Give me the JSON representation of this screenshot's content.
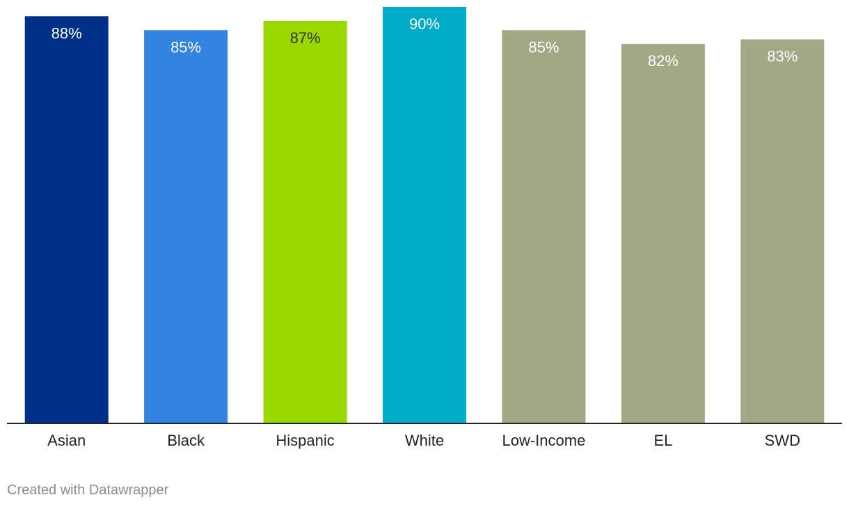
{
  "chart_data": {
    "type": "bar",
    "categories": [
      "Asian",
      "Black",
      "Hispanic",
      "White",
      "Low-Income",
      "EL",
      "SWD"
    ],
    "values": [
      88,
      85,
      87,
      90,
      85,
      82,
      83
    ],
    "value_labels": [
      "88%",
      "85%",
      "87%",
      "90%",
      "85%",
      "82%",
      "83%"
    ],
    "colors": [
      "#003087",
      "#3283e2",
      "#99d900",
      "#00adc8",
      "#a3a985",
      "#a3a985",
      "#a3a985"
    ],
    "label_color_dark": "#333333",
    "label_color_light": "#ffffff",
    "ylim": [
      0,
      90
    ],
    "grid": false,
    "title": "",
    "xlabel": "",
    "ylabel": ""
  },
  "footer": {
    "credit": "Created with Datawrapper"
  }
}
